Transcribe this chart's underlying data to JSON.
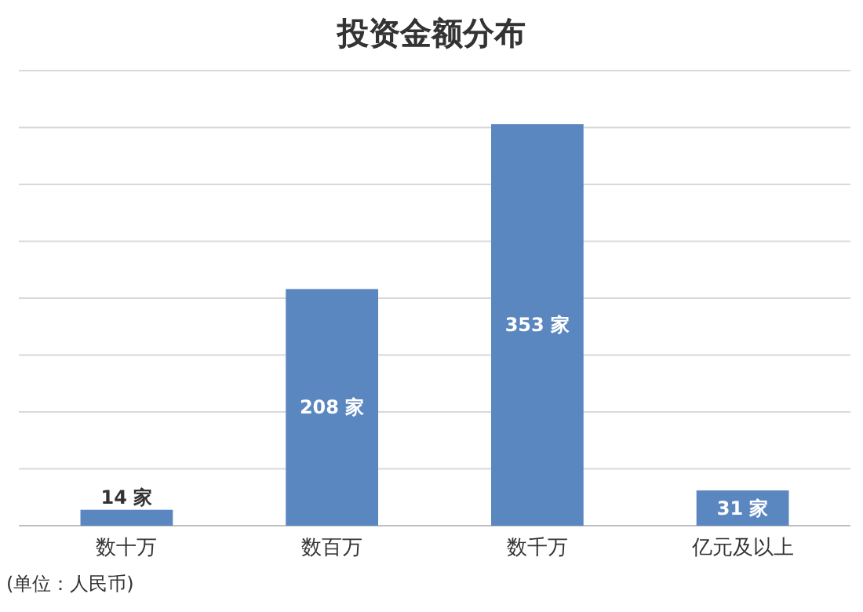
{
  "chart_data": {
    "type": "bar",
    "title": "投资金额分布",
    "categories": [
      "数十万",
      "数百万",
      "数千万",
      "亿元及以上"
    ],
    "values": [
      14,
      208,
      353,
      31
    ],
    "value_labels": [
      "14 家",
      "208 家",
      "353 家",
      "31 家"
    ],
    "color": "#5b87c0",
    "ylim": [
      0,
      400
    ],
    "yticks": [
      {
        "value": 0,
        "label": null
      },
      {
        "value": 50,
        "label": null
      },
      {
        "value": 100,
        "label": null
      },
      {
        "value": 150,
        "label": null
      },
      {
        "value": 200,
        "label": null
      },
      {
        "value": 250,
        "label": null
      },
      {
        "value": 300,
        "label": null
      },
      {
        "value": 350,
        "label": null
      },
      {
        "value": 400,
        "label": null
      }
    ],
    "grid": "y",
    "tick_labels": "x",
    "annotations": [
      "(单位：人民币)"
    ]
  }
}
